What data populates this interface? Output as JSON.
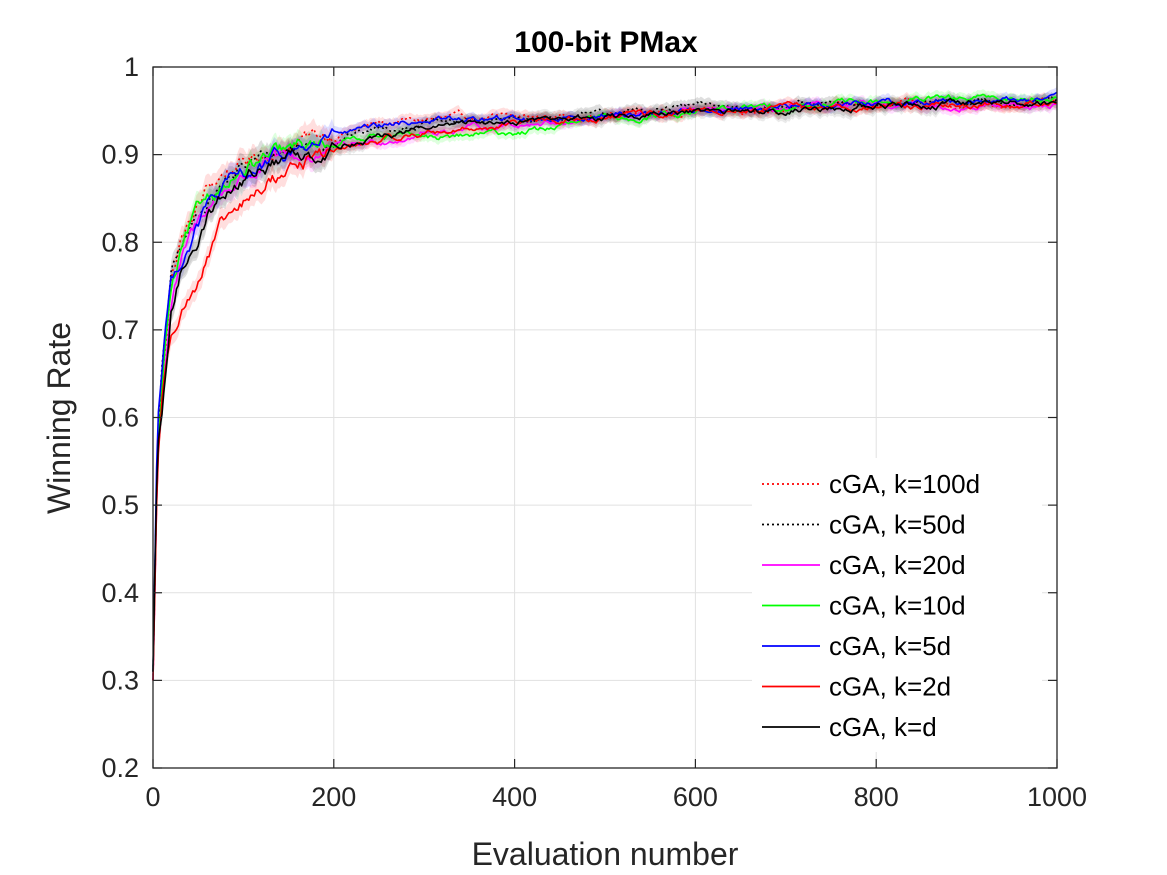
{
  "chart_data": {
    "type": "line",
    "title": "100-bit PMax",
    "xlabel": "Evaluation number",
    "ylabel": "Winning Rate",
    "xlim": [
      0,
      1000
    ],
    "ylim": [
      0.2,
      1
    ],
    "xticks": [
      0,
      200,
      400,
      600,
      800,
      1000
    ],
    "xtick_labels": [
      "0",
      "200",
      "400",
      "600",
      "800",
      "1000"
    ],
    "yticks": [
      0.2,
      0.3,
      0.4,
      0.5,
      0.6,
      0.7,
      0.8,
      0.9,
      1
    ],
    "ytick_labels": [
      "0.2",
      "0.3",
      "0.4",
      "0.5",
      "0.6",
      "0.7",
      "0.8",
      "0.9",
      "1"
    ],
    "grid": true,
    "legend_position": "bottom-right",
    "series": [
      {
        "name": "cGA, k=100d",
        "color": "#ff0000",
        "dash": "dotted",
        "x": [
          0,
          5,
          10,
          15,
          20,
          30,
          40,
          50,
          60,
          80,
          100,
          130,
          160,
          200,
          250,
          300,
          400,
          500,
          600,
          700,
          800,
          900,
          1000
        ],
        "y": [
          0.3,
          0.56,
          0.64,
          0.7,
          0.76,
          0.8,
          0.82,
          0.84,
          0.86,
          0.88,
          0.89,
          0.905,
          0.915,
          0.925,
          0.935,
          0.94,
          0.942,
          0.945,
          0.95,
          0.953,
          0.957,
          0.958,
          0.96
        ]
      },
      {
        "name": "cGA, k=50d",
        "color": "#000000",
        "dash": "dotted",
        "x": [
          0,
          5,
          10,
          15,
          20,
          30,
          40,
          50,
          60,
          80,
          100,
          130,
          160,
          200,
          250,
          300,
          400,
          500,
          600,
          700,
          800,
          900,
          1000
        ],
        "y": [
          0.31,
          0.57,
          0.65,
          0.71,
          0.76,
          0.79,
          0.81,
          0.83,
          0.85,
          0.87,
          0.885,
          0.9,
          0.91,
          0.92,
          0.93,
          0.935,
          0.94,
          0.945,
          0.955,
          0.955,
          0.957,
          0.96,
          0.962
        ]
      },
      {
        "name": "cGA, k=20d",
        "color": "#ff00ff",
        "dash": "solid",
        "x": [
          0,
          5,
          10,
          15,
          20,
          30,
          40,
          50,
          60,
          80,
          100,
          130,
          160,
          200,
          250,
          300,
          400,
          500,
          600,
          700,
          800,
          900,
          1000
        ],
        "y": [
          0.3,
          0.55,
          0.62,
          0.68,
          0.73,
          0.77,
          0.8,
          0.82,
          0.84,
          0.86,
          0.875,
          0.89,
          0.895,
          0.905,
          0.915,
          0.925,
          0.935,
          0.942,
          0.948,
          0.952,
          0.955,
          0.955,
          0.957
        ]
      },
      {
        "name": "cGA, k=10d",
        "color": "#00ff00",
        "dash": "solid",
        "x": [
          0,
          5,
          10,
          15,
          20,
          30,
          40,
          50,
          60,
          80,
          100,
          130,
          160,
          200,
          250,
          300,
          400,
          500,
          600,
          700,
          800,
          900,
          1000
        ],
        "y": [
          0.31,
          0.56,
          0.63,
          0.7,
          0.74,
          0.78,
          0.81,
          0.83,
          0.85,
          0.87,
          0.88,
          0.895,
          0.905,
          0.915,
          0.925,
          0.918,
          0.925,
          0.94,
          0.95,
          0.955,
          0.96,
          0.963,
          0.965
        ]
      },
      {
        "name": "cGA, k=5d",
        "color": "#0000ff",
        "dash": "solid",
        "x": [
          0,
          5,
          10,
          15,
          20,
          30,
          40,
          50,
          60,
          80,
          100,
          130,
          160,
          200,
          250,
          300,
          400,
          500,
          600,
          700,
          800,
          900,
          1000
        ],
        "y": [
          0.31,
          0.6,
          0.66,
          0.72,
          0.755,
          0.78,
          0.8,
          0.82,
          0.84,
          0.86,
          0.875,
          0.89,
          0.905,
          0.92,
          0.93,
          0.94,
          0.94,
          0.945,
          0.95,
          0.955,
          0.96,
          0.962,
          0.963
        ]
      },
      {
        "name": "cGA, k=2d",
        "color": "#ff0000",
        "dash": "solid",
        "x": [
          0,
          5,
          10,
          15,
          20,
          30,
          40,
          50,
          60,
          80,
          100,
          130,
          160,
          200,
          250,
          300,
          400,
          500,
          600,
          700,
          800,
          900,
          1000
        ],
        "y": [
          0.3,
          0.55,
          0.62,
          0.66,
          0.7,
          0.73,
          0.74,
          0.76,
          0.78,
          0.82,
          0.84,
          0.87,
          0.89,
          0.905,
          0.915,
          0.925,
          0.935,
          0.942,
          0.948,
          0.953,
          0.955,
          0.957,
          0.96
        ]
      },
      {
        "name": "cGA, k=d",
        "color": "#000000",
        "dash": "solid",
        "x": [
          0,
          5,
          10,
          15,
          20,
          30,
          40,
          50,
          60,
          80,
          100,
          130,
          160,
          200,
          250,
          300,
          400,
          500,
          600,
          700,
          800,
          900,
          1000
        ],
        "y": [
          0.31,
          0.56,
          0.6,
          0.65,
          0.72,
          0.76,
          0.79,
          0.81,
          0.83,
          0.86,
          0.87,
          0.89,
          0.9,
          0.91,
          0.92,
          0.93,
          0.94,
          0.942,
          0.947,
          0.952,
          0.955,
          0.958,
          0.96
        ]
      }
    ]
  }
}
